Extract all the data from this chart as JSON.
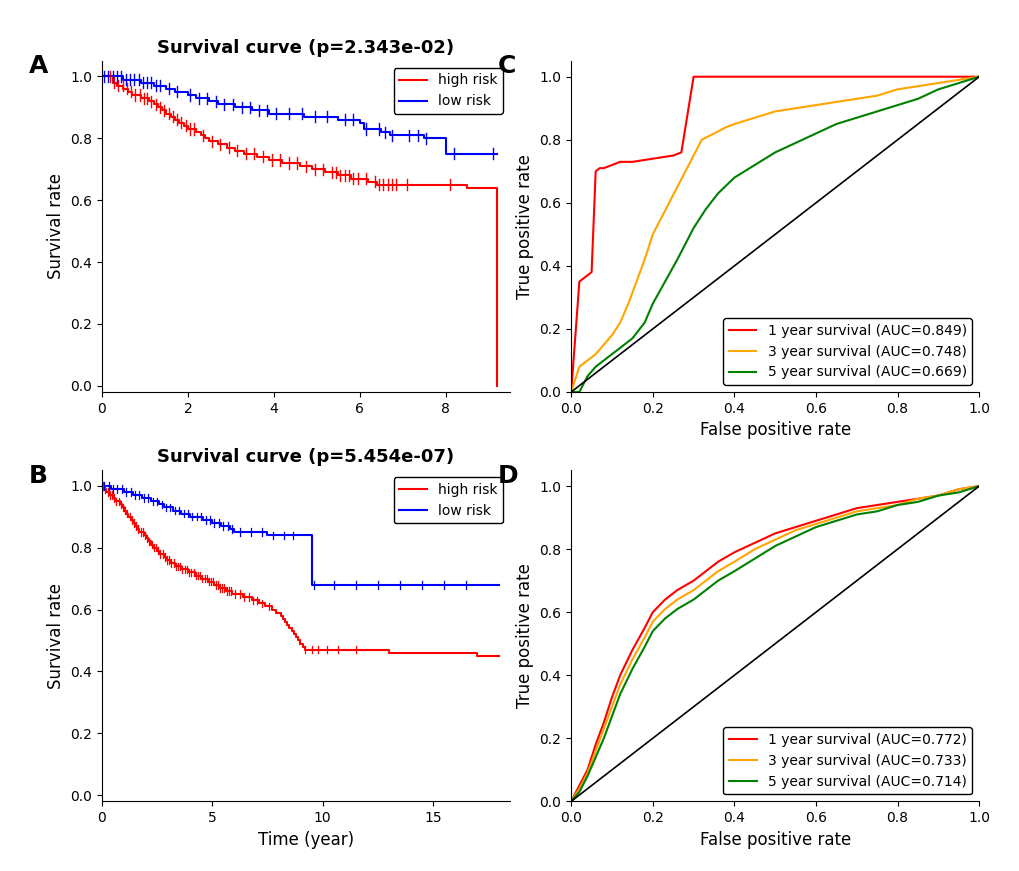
{
  "panel_A": {
    "title": "Survival curve (p=2.343e-02)",
    "xlabel": "",
    "ylabel": "Survival rate",
    "xlim": [
      0,
      9.5
    ],
    "ylim": [
      -0.02,
      1.05
    ],
    "xticks": [
      0,
      2,
      4,
      6,
      8
    ],
    "yticks": [
      0.0,
      0.2,
      0.4,
      0.6,
      0.8,
      1.0
    ],
    "high_risk_color": "#FF0000",
    "low_risk_color": "#0000FF",
    "legend_labels": [
      "high risk",
      "low risk"
    ]
  },
  "panel_B": {
    "title": "Survival curve (p=5.454e-07)",
    "xlabel": "Time (year)",
    "ylabel": "Survival rate",
    "xlim": [
      0,
      18.5
    ],
    "ylim": [
      -0.02,
      1.05
    ],
    "xticks": [
      0,
      5,
      10,
      15
    ],
    "yticks": [
      0.0,
      0.2,
      0.4,
      0.6,
      0.8,
      1.0
    ],
    "high_risk_color": "#FF0000",
    "low_risk_color": "#0000FF",
    "legend_labels": [
      "high risk",
      "low risk"
    ]
  },
  "panel_C": {
    "xlabel": "False positive rate",
    "ylabel": "True positive rate",
    "xlim": [
      0,
      1.0
    ],
    "ylim": [
      0,
      1.05
    ],
    "xticks": [
      0.0,
      0.2,
      0.4,
      0.6,
      0.8,
      1.0
    ],
    "yticks": [
      0.0,
      0.2,
      0.4,
      0.6,
      0.8,
      1.0
    ],
    "colors": [
      "#FF0000",
      "#FFA500",
      "#008000"
    ],
    "legend_labels": [
      "1 year survival (AUC=0.849)",
      "3 year survival (AUC=0.748)",
      "5 year survival (AUC=0.669)"
    ]
  },
  "panel_D": {
    "xlabel": "False positive rate",
    "ylabel": "True positive rate",
    "xlim": [
      0,
      1.0
    ],
    "ylim": [
      0,
      1.05
    ],
    "xticks": [
      0.0,
      0.2,
      0.4,
      0.6,
      0.8,
      1.0
    ],
    "yticks": [
      0.0,
      0.2,
      0.4,
      0.6,
      0.8,
      1.0
    ],
    "colors": [
      "#FF0000",
      "#FFA500",
      "#008000"
    ],
    "legend_labels": [
      "1 year survival (AUC=0.772)",
      "3 year survival (AUC=0.733)",
      "5 year survival (AUC=0.714)"
    ]
  },
  "background_color": "#FFFFFF",
  "label_fontsize": 18,
  "title_fontsize": 13,
  "axis_fontsize": 12,
  "tick_fontsize": 10,
  "legend_fontsize": 10
}
